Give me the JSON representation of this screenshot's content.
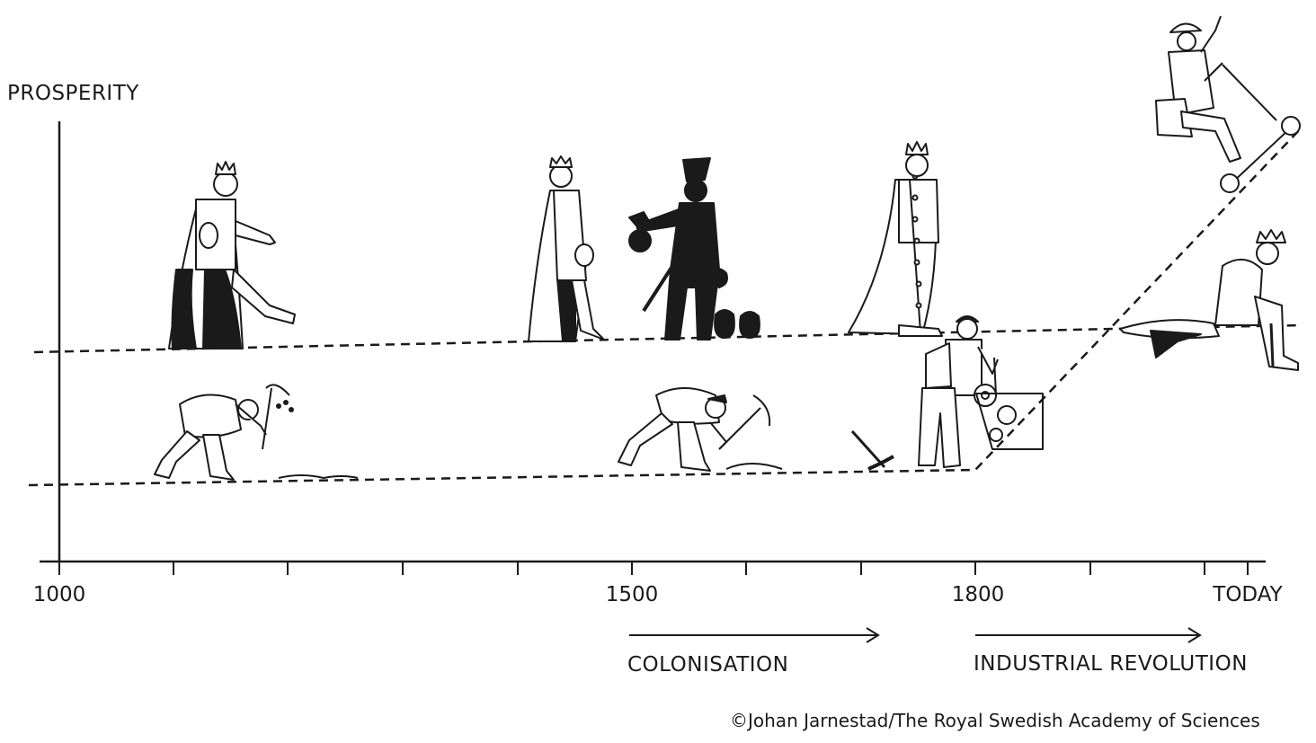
{
  "diagram": {
    "y_axis_label": "PROSPERITY",
    "x_ticks": [
      "1000",
      "1500",
      "1800",
      "TODAY"
    ],
    "periods": [
      {
        "label": "COLONISATION"
      },
      {
        "label": "INDUSTRIAL REVOLUTION"
      }
    ],
    "credit": "©Johan Jarnestad/The Royal Swedish Academy of Sciences",
    "figures": [
      {
        "name": "medieval-king",
        "group": "elite"
      },
      {
        "name": "medieval-laborer-with-pick",
        "group": "workers"
      },
      {
        "name": "queen-with-purse",
        "group": "elite"
      },
      {
        "name": "colonial-officer-silhouette-with-money-bags",
        "group": "elite"
      },
      {
        "name": "kneeling-miner-with-pickaxe",
        "group": "workers"
      },
      {
        "name": "king-in-long-robe",
        "group": "elite"
      },
      {
        "name": "factory-worker-at-machine",
        "group": "workers"
      },
      {
        "name": "modern-commuter-on-scooter",
        "group": "rising"
      },
      {
        "name": "king-sitting-on-ledge",
        "group": "elite"
      }
    ]
  }
}
